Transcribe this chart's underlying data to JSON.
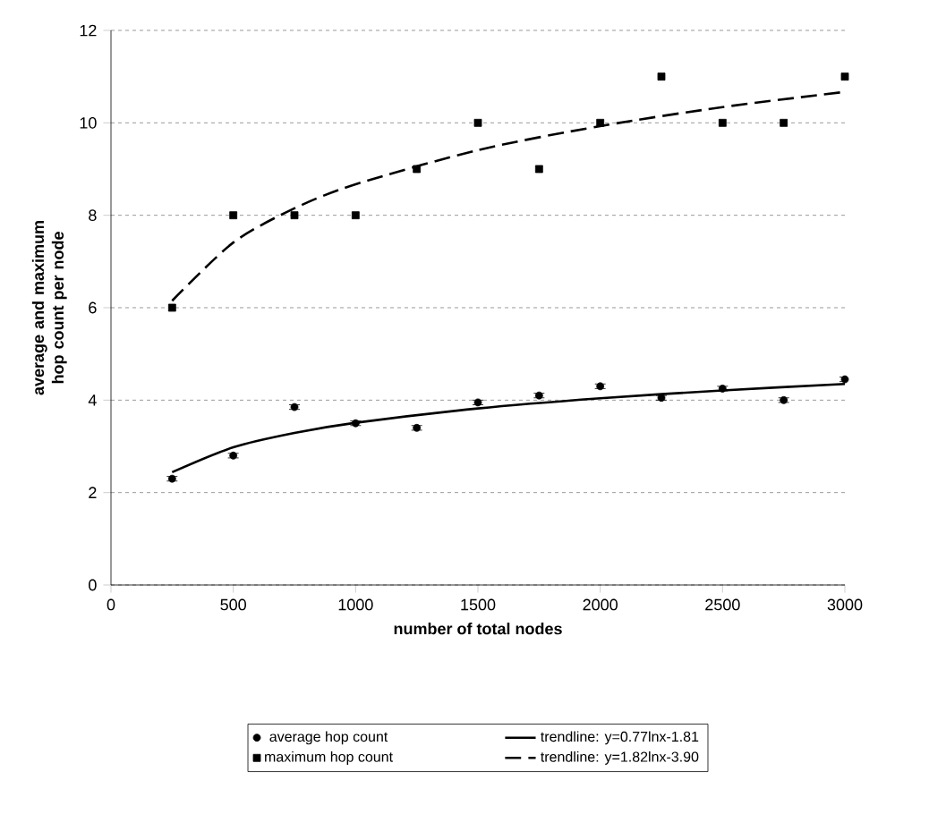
{
  "chart_data": {
    "type": "scatter",
    "xlabel": "number of total nodes",
    "ylabel": "average and maximum hop count per node",
    "xlim": [
      0,
      3000
    ],
    "ylim": [
      0,
      12
    ],
    "xticks": [
      0,
      500,
      1000,
      1500,
      2000,
      2500,
      3000
    ],
    "yticks": [
      0,
      2,
      4,
      6,
      8,
      10,
      12
    ],
    "grid": "y",
    "legend": "bottom",
    "series": [
      {
        "name": "average hop count",
        "marker": "circle",
        "color": "#000000",
        "x": [
          250,
          500,
          750,
          1000,
          1250,
          1500,
          1750,
          2000,
          2250,
          2500,
          2750,
          3000
        ],
        "values": [
          2.3,
          2.8,
          3.85,
          3.5,
          3.4,
          3.95,
          4.1,
          4.3,
          4.05,
          4.25,
          4.0,
          4.45
        ],
        "errors": [
          0.05,
          0.05,
          0.05,
          0.05,
          0.05,
          0.05,
          0.05,
          0.05,
          0.05,
          0.05,
          0.05,
          0.05
        ]
      },
      {
        "name": "trendline: y=0.77lnx-1.81",
        "type": "line",
        "line_style": "solid",
        "color": "#000000",
        "x": [
          250,
          500,
          750,
          1000,
          1500,
          2000,
          2500,
          3000
        ],
        "values": [
          2.44,
          2.98,
          3.29,
          3.51,
          3.82,
          4.04,
          4.21,
          4.35
        ]
      },
      {
        "name": "maximum hop count",
        "marker": "square",
        "color": "#000000",
        "x": [
          250,
          500,
          750,
          1000,
          1250,
          1500,
          1750,
          2000,
          2250,
          2500,
          2750,
          3000
        ],
        "values": [
          6,
          8,
          8,
          8,
          9,
          10,
          9,
          10,
          11,
          10,
          10,
          11
        ]
      },
      {
        "name": "trendline: y=1.82lnx-3.90",
        "type": "line",
        "line_style": "dashed",
        "color": "#000000",
        "x": [
          250,
          500,
          750,
          1000,
          1500,
          2000,
          2500,
          3000
        ],
        "values": [
          6.15,
          7.41,
          8.15,
          8.67,
          9.41,
          9.93,
          10.34,
          10.67
        ]
      }
    ]
  }
}
